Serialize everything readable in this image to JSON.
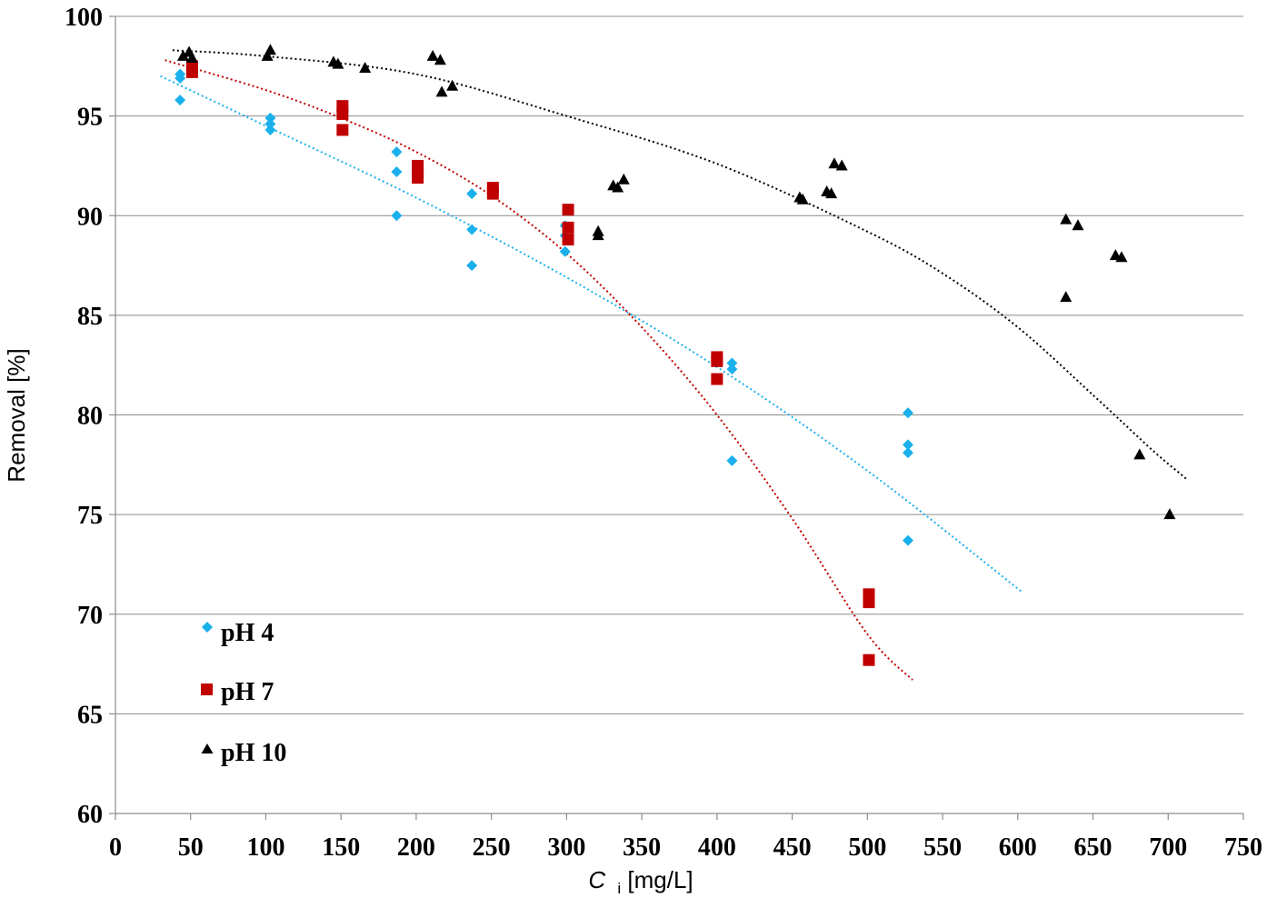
{
  "chart_data": {
    "type": "scatter",
    "xlabel_italic": "C",
    "xlabel_sub": "i",
    "xlabel_rest": " [mg/L]",
    "ylabel": "Removal [%]",
    "xlim": [
      0,
      750
    ],
    "ylim": [
      60,
      100
    ],
    "x_ticks": [
      0,
      50,
      100,
      150,
      200,
      250,
      300,
      350,
      400,
      450,
      500,
      550,
      600,
      650,
      700,
      750
    ],
    "y_ticks": [
      60,
      65,
      70,
      75,
      80,
      85,
      90,
      95,
      100
    ],
    "grid": "horizontal",
    "legend_position": "bottom-left",
    "series": [
      {
        "name": "pH 4",
        "color": "#1ab0ec",
        "marker": "diamond",
        "points": [
          [
            43,
            97.1
          ],
          [
            43,
            96.9
          ],
          [
            43,
            95.8
          ],
          [
            103,
            94.9
          ],
          [
            103,
            94.6
          ],
          [
            103,
            94.3
          ],
          [
            187,
            93.2
          ],
          [
            187,
            92.2
          ],
          [
            187,
            90.0
          ],
          [
            237,
            91.1
          ],
          [
            237,
            89.3
          ],
          [
            237,
            87.5
          ],
          [
            299,
            89.5
          ],
          [
            299,
            89.0
          ],
          [
            299,
            88.2
          ],
          [
            410,
            82.6
          ],
          [
            410,
            82.3
          ],
          [
            410,
            77.7
          ],
          [
            527,
            80.1
          ],
          [
            527,
            78.5
          ],
          [
            527,
            78.1
          ],
          [
            527,
            73.7
          ]
        ],
        "trend": [
          [
            30,
            97.0
          ],
          [
            100,
            94.5
          ],
          [
            200,
            90.9
          ],
          [
            300,
            86.9
          ],
          [
            400,
            82.4
          ],
          [
            500,
            77.2
          ],
          [
            603,
            71.1
          ]
        ]
      },
      {
        "name": "pH 7",
        "color": "#c00000",
        "marker": "square",
        "points": [
          [
            51,
            97.5
          ],
          [
            51,
            97.2
          ],
          [
            151,
            95.5
          ],
          [
            151,
            95.1
          ],
          [
            151,
            94.3
          ],
          [
            201,
            92.5
          ],
          [
            201,
            92.2
          ],
          [
            201,
            91.9
          ],
          [
            251,
            91.4
          ],
          [
            251,
            91.1
          ],
          [
            301,
            90.3
          ],
          [
            301,
            89.4
          ],
          [
            301,
            88.8
          ],
          [
            400,
            82.9
          ],
          [
            400,
            82.7
          ],
          [
            400,
            81.8
          ],
          [
            501,
            71.0
          ],
          [
            501,
            70.6
          ],
          [
            501,
            67.7
          ]
        ],
        "trend": [
          [
            33,
            97.8
          ],
          [
            100,
            96.3
          ],
          [
            150,
            94.9
          ],
          [
            200,
            93.2
          ],
          [
            250,
            91.0
          ],
          [
            300,
            88.1
          ],
          [
            350,
            84.4
          ],
          [
            400,
            80.0
          ],
          [
            450,
            74.8
          ],
          [
            500,
            69.0
          ],
          [
            530,
            66.7
          ]
        ]
      },
      {
        "name": "pH 10",
        "color": "#000000",
        "marker": "triangle",
        "points": [
          [
            45,
            98.0
          ],
          [
            49,
            98.2
          ],
          [
            51,
            97.9
          ],
          [
            101,
            98.0
          ],
          [
            103,
            98.3
          ],
          [
            145,
            97.7
          ],
          [
            148,
            97.6
          ],
          [
            166,
            97.4
          ],
          [
            211,
            98.0
          ],
          [
            216,
            97.8
          ],
          [
            217,
            96.2
          ],
          [
            224,
            96.5
          ],
          [
            321,
            89.2
          ],
          [
            321,
            89.0
          ],
          [
            331,
            91.5
          ],
          [
            334,
            91.4
          ],
          [
            338,
            91.8
          ],
          [
            455,
            90.9
          ],
          [
            457,
            90.8
          ],
          [
            473,
            91.2
          ],
          [
            476,
            91.1
          ],
          [
            478,
            92.6
          ],
          [
            483,
            92.5
          ],
          [
            632,
            89.8
          ],
          [
            632,
            85.9
          ],
          [
            640,
            89.5
          ],
          [
            665,
            88.0
          ],
          [
            669,
            87.9
          ],
          [
            681,
            78.0
          ],
          [
            701,
            75.0
          ]
        ],
        "trend": [
          [
            38,
            98.3
          ],
          [
            100,
            98.0
          ],
          [
            200,
            97.1
          ],
          [
            300,
            95.0
          ],
          [
            400,
            92.6
          ],
          [
            500,
            89.2
          ],
          [
            550,
            87.1
          ],
          [
            600,
            84.4
          ],
          [
            650,
            81.0
          ],
          [
            690,
            78.2
          ],
          [
            712,
            76.8
          ]
        ]
      }
    ]
  }
}
